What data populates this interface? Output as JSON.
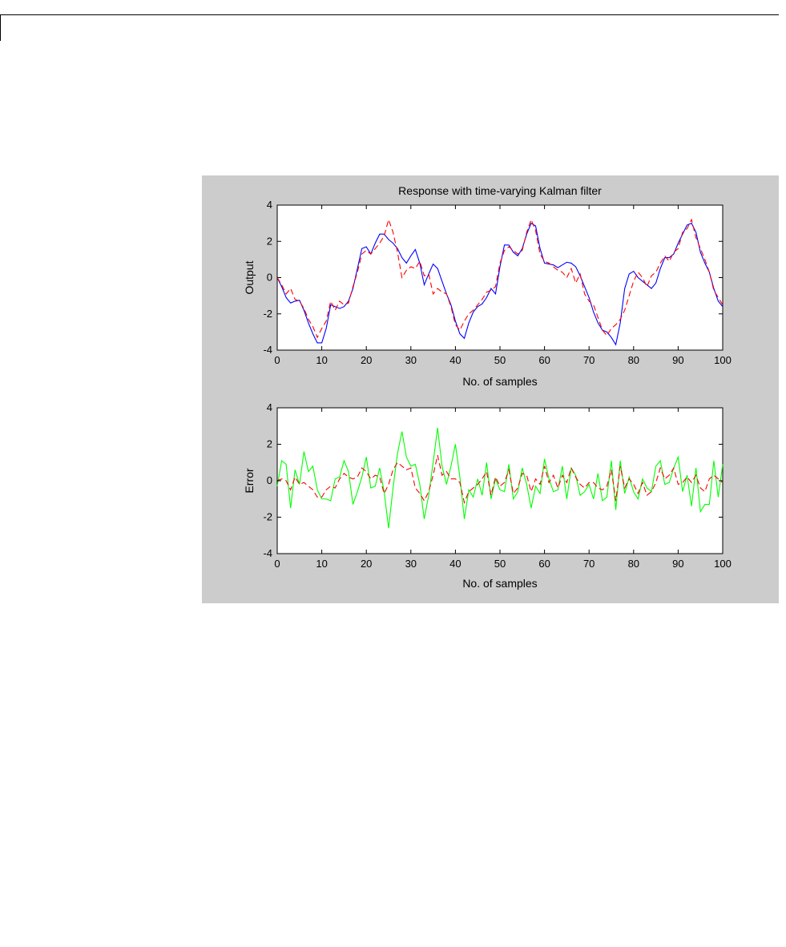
{
  "chart_data": [
    {
      "type": "line",
      "title": "Response with time-varying Kalman filter",
      "xlabel": "No. of samples",
      "ylabel": "Output",
      "xlim": [
        0,
        100
      ],
      "ylim": [
        -4,
        4
      ],
      "xticks": [
        "0",
        "10",
        "20",
        "30",
        "40",
        "50",
        "60",
        "70",
        "80",
        "90",
        "100"
      ],
      "yticks": [
        "-4",
        "-2",
        "0",
        "2",
        "4"
      ],
      "grid": false,
      "series": [
        {
          "color": "#0000ff",
          "style": "solid",
          "x": [
            0,
            1,
            2,
            3,
            4,
            5,
            6,
            7,
            8,
            9,
            10,
            11,
            12,
            13,
            14,
            15,
            16,
            17,
            18,
            19,
            20,
            21,
            22,
            23,
            24,
            25,
            26,
            27,
            28,
            29,
            30,
            31,
            32,
            33,
            34,
            35,
            36,
            37,
            38,
            39,
            40,
            41,
            42,
            43,
            44,
            45,
            46,
            47,
            48,
            49,
            50,
            51,
            52,
            53,
            54,
            55,
            56,
            57,
            58,
            59,
            60,
            61,
            62,
            63,
            64,
            65,
            66,
            67,
            68,
            69,
            70,
            71,
            72,
            73,
            74,
            75,
            76,
            77,
            78,
            79,
            80,
            81,
            82,
            83,
            84,
            85,
            86,
            87,
            88,
            89,
            90,
            91,
            92,
            93,
            94,
            95,
            96,
            97,
            98,
            99,
            100
          ],
          "values": [
            0,
            -0.5,
            -1.1,
            -1.4,
            -1.3,
            -1.25,
            -1.8,
            -2.5,
            -3.1,
            -3.6,
            -3.6,
            -2.8,
            -1.5,
            -1.6,
            -1.7,
            -1.6,
            -1.3,
            -0.6,
            0.5,
            1.6,
            1.7,
            1.3,
            1.9,
            2.4,
            2.4,
            2.1,
            1.9,
            1.6,
            1.1,
            0.8,
            1.2,
            1.55,
            0.8,
            -0.4,
            0.2,
            0.75,
            0.5,
            -0.2,
            -0.9,
            -1.5,
            -2.4,
            -3.1,
            -3.35,
            -2.5,
            -1.9,
            -1.6,
            -1.45,
            -1.1,
            -0.6,
            -0.9,
            0.6,
            1.8,
            1.8,
            1.4,
            1.2,
            1.6,
            2.4,
            3.0,
            2.85,
            1.6,
            0.8,
            0.75,
            0.7,
            0.55,
            0.7,
            0.85,
            0.8,
            0.6,
            0.1,
            -0.5,
            -1.1,
            -1.9,
            -2.5,
            -2.9,
            -3.0,
            -3.3,
            -3.7,
            -2.5,
            -0.6,
            0.2,
            0.35,
            0,
            -0.2,
            -0.4,
            -0.6,
            -0.3,
            0.5,
            1.1,
            1.1,
            1.3,
            1.9,
            2.4,
            2.9,
            3.0,
            2.5,
            1.4,
            0.8,
            0.3,
            -0.6,
            -1.3,
            -1.6
          ]
        },
        {
          "color": "#ff0000",
          "style": "dashed",
          "x": [
            0,
            1,
            2,
            3,
            4,
            5,
            6,
            7,
            8,
            9,
            10,
            11,
            12,
            13,
            14,
            15,
            16,
            17,
            18,
            19,
            20,
            21,
            22,
            23,
            24,
            25,
            26,
            27,
            28,
            29,
            30,
            31,
            32,
            33,
            34,
            35,
            36,
            37,
            38,
            39,
            40,
            41,
            42,
            43,
            44,
            45,
            46,
            47,
            48,
            49,
            50,
            51,
            52,
            53,
            54,
            55,
            56,
            57,
            58,
            59,
            60,
            61,
            62,
            63,
            64,
            65,
            66,
            67,
            68,
            69,
            70,
            71,
            72,
            73,
            74,
            75,
            76,
            77,
            78,
            79,
            80,
            81,
            82,
            83,
            84,
            85,
            86,
            87,
            88,
            89,
            90,
            91,
            92,
            93,
            94,
            95,
            96,
            97,
            98,
            99,
            100
          ],
          "values": [
            0,
            -0.4,
            -0.9,
            -0.6,
            -1.2,
            -1.3,
            -1.7,
            -2.3,
            -2.7,
            -3.3,
            -2.8,
            -2.4,
            -1.3,
            -1.8,
            -1.3,
            -1.5,
            -1.4,
            -0.5,
            0.3,
            1.3,
            1.5,
            1.3,
            1.6,
            1.9,
            2.3,
            3.2,
            2.5,
            1.4,
            0,
            0.4,
            0.6,
            0.5,
            0.9,
            0.1,
            0.2,
            -0.9,
            -0.6,
            -0.8,
            -0.9,
            -1.6,
            -2.6,
            -2.9,
            -2.4,
            -2.0,
            -1.8,
            -1.5,
            -1.2,
            -0.8,
            -0.7,
            -0.5,
            0.8,
            1.5,
            1.7,
            1.5,
            1.3,
            1.5,
            2.5,
            3.2,
            2.6,
            1.3,
            0.9,
            0.8,
            0.6,
            0.4,
            0.3,
            0,
            0.5,
            -0.3,
            0.2,
            -0.9,
            -1.3,
            -1.5,
            -2.2,
            -2.9,
            -3.2,
            -2.8,
            -2.6,
            -2.3,
            -1.8,
            -1.0,
            -0.2,
            0.3,
            0,
            -0.5,
            0.1,
            0.3,
            0.8,
            1.2,
            0.9,
            1.4,
            1.6,
            2.5,
            2.7,
            3.2,
            2.2,
            1.6,
            1.0,
            0.3,
            -0.7,
            -1.1,
            -1.5
          ]
        }
      ]
    },
    {
      "type": "line",
      "title": "",
      "xlabel": "No. of samples",
      "ylabel": "Error",
      "xlim": [
        0,
        100
      ],
      "ylim": [
        -4,
        4
      ],
      "xticks": [
        "0",
        "10",
        "20",
        "30",
        "40",
        "50",
        "60",
        "70",
        "80",
        "90",
        "100"
      ],
      "yticks": [
        "-4",
        "-2",
        "0",
        "2",
        "4"
      ],
      "grid": false,
      "series": [
        {
          "color": "#00ff00",
          "style": "solid",
          "x": [
            0,
            1,
            2,
            3,
            4,
            5,
            6,
            7,
            8,
            9,
            10,
            11,
            12,
            13,
            14,
            15,
            16,
            17,
            18,
            19,
            20,
            21,
            22,
            23,
            24,
            25,
            26,
            27,
            28,
            29,
            30,
            31,
            32,
            33,
            34,
            35,
            36,
            37,
            38,
            39,
            40,
            41,
            42,
            43,
            44,
            45,
            46,
            47,
            48,
            49,
            50,
            51,
            52,
            53,
            54,
            55,
            56,
            57,
            58,
            59,
            60,
            61,
            62,
            63,
            64,
            65,
            66,
            67,
            68,
            69,
            70,
            71,
            72,
            73,
            74,
            75,
            76,
            77,
            78,
            79,
            80,
            81,
            82,
            83,
            84,
            85,
            86,
            87,
            88,
            89,
            90,
            91,
            92,
            93,
            94,
            95,
            96,
            97,
            98,
            99,
            100
          ],
          "values": [
            -0.3,
            1.1,
            0.9,
            -1.5,
            0.6,
            -0.2,
            1.6,
            0.5,
            0.8,
            -0.5,
            -1.0,
            -1.0,
            -1.1,
            0.1,
            0.2,
            1.1,
            0.5,
            -1.3,
            -0.6,
            0.2,
            1.3,
            -0.4,
            -0.3,
            0.7,
            -0.6,
            -2.6,
            -0.4,
            1.5,
            2.7,
            1.3,
            0.8,
            0.9,
            -0.2,
            -2.1,
            -0.8,
            1.0,
            2.9,
            0.8,
            -0.2,
            0.8,
            2.0,
            0.2,
            -2.1,
            -0.5,
            -0.9,
            0.1,
            -0.8,
            1.0,
            -1.0,
            0.1,
            -0.5,
            -0.6,
            0.9,
            -1.0,
            -0.6,
            0.7,
            -0.2,
            -1.5,
            -0.3,
            -0.7,
            1.2,
            0.1,
            -0.6,
            -0.5,
            0.8,
            -1.0,
            0.7,
            0.3,
            -0.8,
            -0.6,
            -0.2,
            -1.0,
            0.4,
            -1.1,
            -0.9,
            1.1,
            -1.6,
            1.1,
            -0.7,
            0.2,
            -0.6,
            -1.0,
            0.1,
            -0.4,
            -0.6,
            0.8,
            1.1,
            -0.2,
            -0.1,
            0.7,
            1.3,
            -0.6,
            0.3,
            -1.4,
            0.7,
            -1.7,
            -1.3,
            -1.3,
            1.1,
            -0.9,
            0.9
          ]
        },
        {
          "color": "#ff0000",
          "style": "dashed",
          "x": [
            0,
            1,
            2,
            3,
            4,
            5,
            6,
            7,
            8,
            9,
            10,
            11,
            12,
            13,
            14,
            15,
            16,
            17,
            18,
            19,
            20,
            21,
            22,
            23,
            24,
            25,
            26,
            27,
            28,
            29,
            30,
            31,
            32,
            33,
            34,
            35,
            36,
            37,
            38,
            39,
            40,
            41,
            42,
            43,
            44,
            45,
            46,
            47,
            48,
            49,
            50,
            51,
            52,
            53,
            54,
            55,
            56,
            57,
            58,
            59,
            60,
            61,
            62,
            63,
            64,
            65,
            66,
            67,
            68,
            69,
            70,
            71,
            72,
            73,
            74,
            75,
            76,
            77,
            78,
            79,
            80,
            81,
            82,
            83,
            84,
            85,
            86,
            87,
            88,
            89,
            90,
            91,
            92,
            93,
            94,
            95,
            96,
            97,
            98,
            99,
            100
          ],
          "values": [
            0,
            0.1,
            0,
            -0.5,
            0.2,
            -0.2,
            -0.1,
            -0.3,
            -0.5,
            -0.9,
            -0.9,
            -0.5,
            -0.3,
            -0.4,
            0.1,
            0.4,
            0.2,
            0.1,
            0.2,
            0.7,
            0.5,
            0.1,
            0.3,
            0.2,
            -0.7,
            -0.2,
            0.6,
            1.0,
            0.8,
            0.6,
            0.7,
            -0.4,
            -0.7,
            -1.1,
            -0.6,
            0.3,
            1.4,
            0.3,
            0.5,
            0.1,
            0.1,
            -0.1,
            -1.2,
            -0.6,
            -0.4,
            -0.2,
            0.1,
            0.5,
            -0.8,
            0.2,
            -0.3,
            -0.1,
            0.6,
            -0.7,
            -0.4,
            0.4,
            0.3,
            -0.6,
            0.1,
            -0.2,
            0.8,
            -0.1,
            0.3,
            -0.4,
            0.3,
            -0.1,
            0.7,
            0.2,
            -0.2,
            -0.4,
            -0.1,
            -0.1,
            -0.4,
            -0.5,
            -0.3,
            0.6,
            -1.1,
            0.8,
            -0.4,
            0.1,
            -0.2,
            -0.7,
            -0.1,
            -0.8,
            -0.6,
            -0.1,
            0.7,
            0.1,
            0.3,
            0.7,
            -0.2,
            -0.1,
            0.2,
            -0.1,
            0.3,
            -0.4,
            -0.6,
            0.1,
            0.3,
            0.1,
            -0.1
          ]
        }
      ]
    }
  ]
}
